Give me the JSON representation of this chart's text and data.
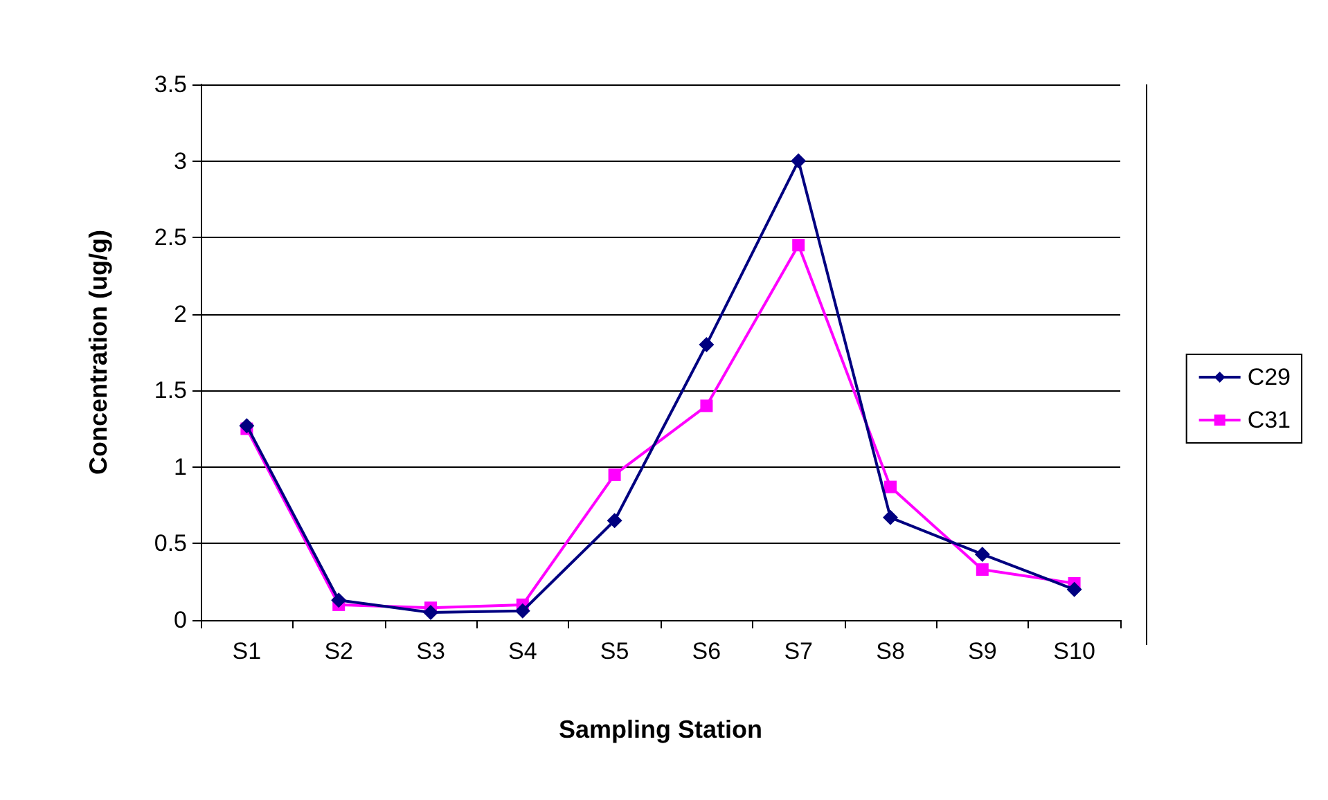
{
  "chart_data": {
    "type": "line",
    "xlabel": "Sampling Station",
    "ylabel": "Concentration (ug/g)",
    "categories": [
      "S1",
      "S2",
      "S3",
      "S4",
      "S5",
      "S6",
      "S7",
      "S8",
      "S9",
      "S10"
    ],
    "series": [
      {
        "name": "C29",
        "color": "#000080",
        "marker": "diamond",
        "values": [
          1.27,
          0.13,
          0.05,
          0.06,
          0.65,
          1.8,
          3.0,
          0.67,
          0.43,
          0.2
        ]
      },
      {
        "name": "C31",
        "color": "#ff00ff",
        "marker": "square",
        "values": [
          1.25,
          0.1,
          0.08,
          0.1,
          0.95,
          1.4,
          2.45,
          0.87,
          0.33,
          0.24
        ]
      }
    ],
    "ylim": [
      0,
      3.5
    ],
    "yticks": [
      0,
      0.5,
      1,
      1.5,
      2,
      2.5,
      3,
      3.5
    ],
    "grid": "y",
    "legend": "right",
    "line_style": "solid"
  }
}
